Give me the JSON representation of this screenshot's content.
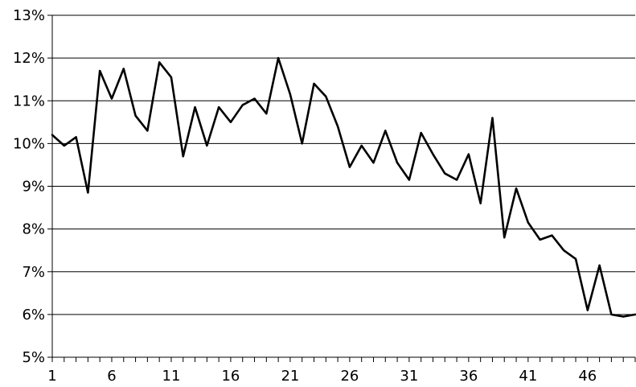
{
  "chart_data": {
    "type": "line",
    "title": "",
    "xlabel": "",
    "ylabel": "",
    "y_unit": "%",
    "ylim": [
      5,
      13
    ],
    "y_ticks": [
      5,
      6,
      7,
      8,
      9,
      10,
      11,
      12,
      13
    ],
    "y_tick_labels": [
      "5%",
      "6%",
      "7%",
      "8%",
      "9%",
      "10%",
      "11%",
      "12%",
      "13%"
    ],
    "grid": "horizontal",
    "xlim": [
      1,
      50
    ],
    "x_ticks": [
      1,
      6,
      11,
      16,
      21,
      26,
      31,
      36,
      41,
      46
    ],
    "x_tick_labels": [
      "1",
      "6",
      "11",
      "16",
      "21",
      "26",
      "31",
      "36",
      "41",
      "46"
    ],
    "series": [
      {
        "color": "#000000",
        "x": [
          1,
          2,
          3,
          4,
          5,
          6,
          7,
          8,
          9,
          10,
          11,
          12,
          13,
          14,
          15,
          16,
          17,
          18,
          19,
          20,
          21,
          22,
          23,
          24,
          25,
          26,
          27,
          28,
          29,
          30,
          31,
          32,
          33,
          34,
          35,
          36,
          37,
          38,
          39,
          40,
          41,
          42,
          43,
          44,
          45,
          46,
          47,
          48,
          49,
          50
        ],
        "values": [
          10.2,
          9.95,
          10.15,
          8.85,
          11.7,
          11.05,
          11.75,
          10.65,
          10.3,
          11.9,
          11.55,
          9.7,
          10.85,
          9.95,
          10.85,
          10.5,
          10.9,
          11.05,
          10.7,
          12.0,
          11.15,
          10.0,
          11.4,
          11.1,
          10.4,
          9.45,
          9.95,
          9.55,
          10.3,
          9.55,
          9.15,
          10.25,
          9.75,
          9.3,
          9.15,
          9.75,
          8.6,
          10.6,
          7.8,
          8.95,
          8.15,
          7.75,
          7.85,
          7.5,
          7.3,
          6.1,
          7.15,
          6.0,
          5.95,
          6.0
        ]
      }
    ]
  }
}
